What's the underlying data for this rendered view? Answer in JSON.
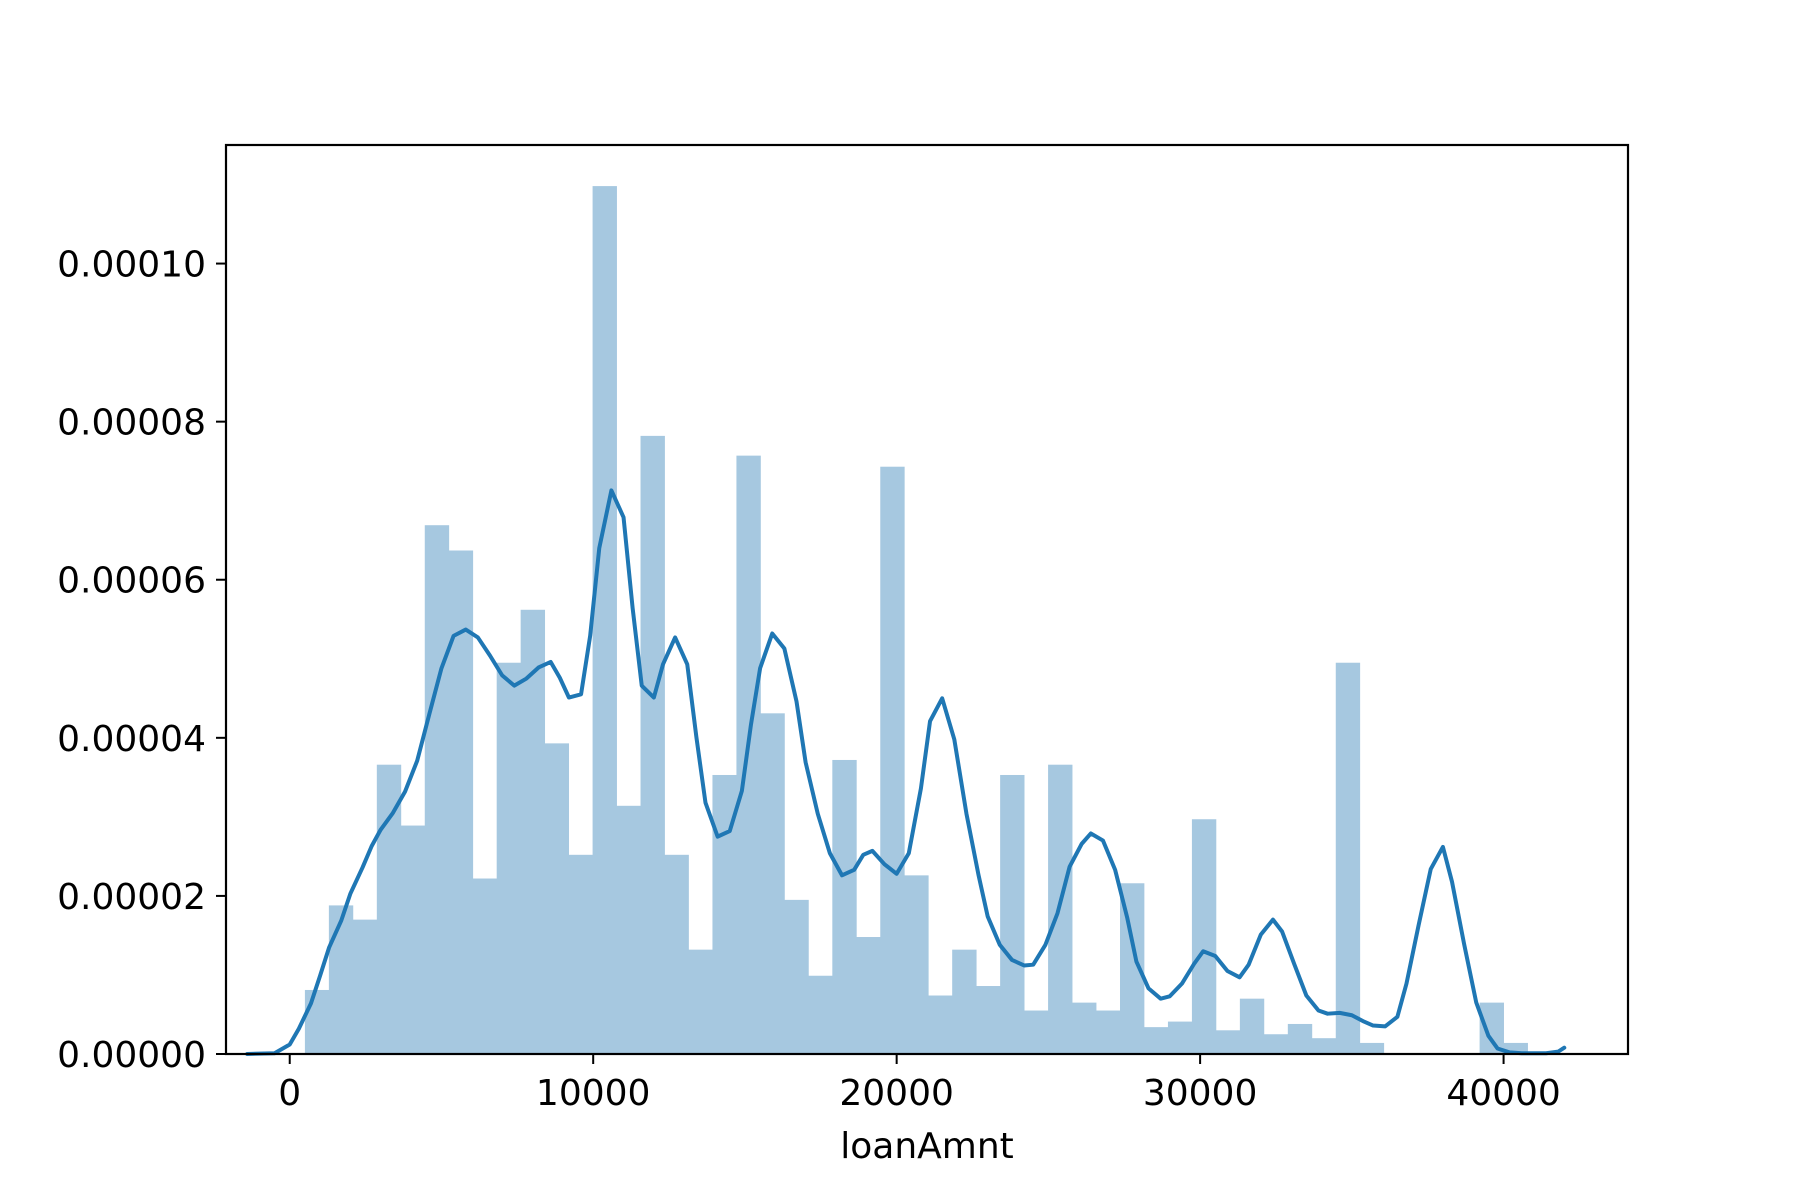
{
  "chart_data": {
    "type": "bar",
    "subtype": "histogram-with-kde",
    "title": "",
    "xlabel": "loanAmnt",
    "ylabel": "",
    "xlim": [
      -2100,
      44100
    ],
    "ylim": [
      0,
      0.000115
    ],
    "grid": false,
    "legend": "none",
    "colors": {
      "bars": "#a6c8e0",
      "kde": "#1f77b4",
      "axes": "#000000"
    },
    "x_ticks": [
      0,
      10000,
      20000,
      30000,
      40000
    ],
    "x_tick_labels": [
      "0",
      "10000",
      "20000",
      "30000",
      "40000"
    ],
    "y_ticks": [
      0,
      2e-05,
      4e-05,
      6e-05,
      8e-05,
      0.0001
    ],
    "y_tick_labels": [
      "0.00000",
      "0.00002",
      "0.00004",
      "0.00006",
      "0.00008",
      "0.00010"
    ],
    "bin_start": 500,
    "bin_width": 790,
    "histogram": [
      8.1e-06,
      1.88e-05,
      1.7e-05,
      3.66e-05,
      2.89e-05,
      6.69e-05,
      6.37e-05,
      2.22e-05,
      4.95e-05,
      5.62e-05,
      3.93e-05,
      2.52e-05,
      0.0001098,
      3.14e-05,
      7.82e-05,
      2.52e-05,
      1.32e-05,
      3.53e-05,
      7.57e-05,
      4.31e-05,
      1.95e-05,
      9.9e-06,
      3.72e-05,
      1.48e-05,
      7.43e-05,
      2.26e-05,
      7.4e-06,
      1.32e-05,
      8.6e-06,
      3.53e-05,
      5.5e-06,
      3.66e-05,
      6.5e-06,
      5.5e-06,
      2.16e-05,
      3.4e-06,
      4.1e-06,
      2.97e-05,
      3e-06,
      7e-06,
      2.5e-06,
      3.8e-06,
      2e-06,
      4.95e-05,
      1.4e-06,
      0,
      0,
      0,
      0,
      6.5e-06,
      1.4e-06
    ],
    "kde_x": [
      -1400,
      -500,
      0,
      300,
      700,
      1000,
      1300,
      1700,
      2000,
      2400,
      2700,
      3000,
      3400,
      3800,
      4200,
      4600,
      5000,
      5400,
      5800,
      6200,
      6600,
      7000,
      7400,
      7800,
      8200,
      8600,
      8900,
      9200,
      9600,
      9900,
      10200,
      10600,
      11000,
      11300,
      11600,
      12000,
      12300,
      12700,
      13100,
      13400,
      13700,
      14100,
      14500,
      14900,
      15200,
      15500,
      15900,
      16300,
      16700,
      17000,
      17400,
      17800,
      18200,
      18600,
      18900,
      19200,
      19600,
      20000,
      20400,
      20800,
      21100,
      21500,
      21900,
      22300,
      22700,
      23000,
      23400,
      23800,
      24200,
      24500,
      24900,
      25300,
      25700,
      26100,
      26400,
      26800,
      27200,
      27600,
      27900,
      28300,
      28700,
      29000,
      29400,
      29800,
      30100,
      30500,
      30900,
      31300,
      31600,
      32000,
      32400,
      32700,
      33100,
      33500,
      33900,
      34200,
      34600,
      35000,
      35400,
      35700,
      36100,
      36500,
      36800,
      37200,
      37600,
      38000,
      38300,
      38700,
      39100,
      39500,
      39800,
      40200,
      40600,
      41000,
      41400,
      41800,
      42000
    ],
    "kde_y": [
      0,
      1e-07,
      1.2e-06,
      3.2e-06,
      6.4e-06,
      9.9e-06,
      1.35e-05,
      1.69e-05,
      2.03e-05,
      2.36e-05,
      2.63e-05,
      2.84e-05,
      3.05e-05,
      3.32e-05,
      3.71e-05,
      4.3e-05,
      4.88e-05,
      5.29e-05,
      5.37e-05,
      5.27e-05,
      5.04e-05,
      4.79e-05,
      4.66e-05,
      4.75e-05,
      4.89e-05,
      4.96e-05,
      4.76e-05,
      4.51e-05,
      4.55e-05,
      5.29e-05,
      6.4e-05,
      7.13e-05,
      6.79e-05,
      5.64e-05,
      4.66e-05,
      4.51e-05,
      4.93e-05,
      5.27e-05,
      4.93e-05,
      4.01e-05,
      3.18e-05,
      2.75e-05,
      2.82e-05,
      3.33e-05,
      4.17e-05,
      4.88e-05,
      5.32e-05,
      5.13e-05,
      4.46e-05,
      3.69e-05,
      3.04e-05,
      2.54e-05,
      2.26e-05,
      2.33e-05,
      2.52e-05,
      2.57e-05,
      2.4e-05,
      2.28e-05,
      2.54e-05,
      3.36e-05,
      4.21e-05,
      4.5e-05,
      3.98e-05,
      3.04e-05,
      2.26e-05,
      1.74e-05,
      1.38e-05,
      1.19e-05,
      1.12e-05,
      1.13e-05,
      1.38e-05,
      1.78e-05,
      2.37e-05,
      2.66e-05,
      2.79e-05,
      2.7e-05,
      2.33e-05,
      1.72e-05,
      1.17e-05,
      8.3e-06,
      7e-06,
      7.3e-06,
      8.9e-06,
      1.14e-05,
      1.3e-05,
      1.24e-05,
      1.05e-05,
      9.7e-06,
      1.13e-05,
      1.51e-05,
      1.7e-05,
      1.55e-05,
      1.14e-05,
      7.4e-06,
      5.5e-06,
      5.1e-06,
      5.2e-06,
      4.9e-06,
      4.1e-06,
      3.6e-06,
      3.5e-06,
      4.7e-06,
      8.9e-06,
      1.63e-05,
      2.34e-05,
      2.62e-05,
      2.18e-05,
      1.39e-05,
      6.5e-06,
      2.3e-06,
      7e-07,
      2e-07,
      1e-07,
      1e-07,
      1e-07,
      3e-07,
      8e-07,
      1.8e-06,
      3.1e-06,
      3.2e-06,
      2.2e-06,
      9e-07,
      3e-07,
      1e-07,
      0
    ]
  }
}
